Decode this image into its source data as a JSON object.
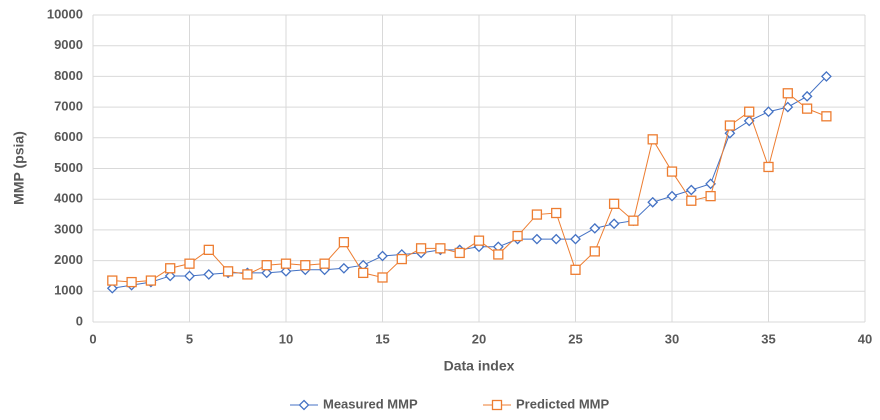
{
  "chart_data": {
    "type": "line",
    "x_label": "Data index",
    "y_label": "MMP (psia)",
    "x": [
      1,
      2,
      3,
      4,
      5,
      6,
      7,
      8,
      9,
      10,
      11,
      12,
      13,
      14,
      15,
      16,
      17,
      18,
      19,
      20,
      21,
      22,
      23,
      24,
      25,
      26,
      27,
      28,
      29,
      30,
      31,
      32,
      33,
      34,
      35,
      36,
      37,
      38
    ],
    "series": [
      {
        "name": "Measured MMP",
        "color": "#4472c4",
        "marker": "diamond",
        "values": [
          1100,
          1200,
          1300,
          1500,
          1500,
          1550,
          1600,
          1600,
          1600,
          1650,
          1700,
          1700,
          1750,
          1850,
          2150,
          2200,
          2250,
          2350,
          2350,
          2450,
          2450,
          2700,
          2700,
          2700,
          2700,
          3050,
          3200,
          3300,
          3900,
          4100,
          4300,
          4500,
          6150,
          6550,
          6850,
          7000,
          7350,
          8000
        ]
      },
      {
        "name": "Predicted MMP",
        "color": "#ed7d31",
        "marker": "square",
        "values": [
          1350,
          1300,
          1350,
          1750,
          1900,
          2350,
          1650,
          1550,
          1850,
          1900,
          1850,
          1900,
          2600,
          1600,
          1450,
          2050,
          2400,
          2400,
          2250,
          2650,
          2200,
          2800,
          3500,
          3550,
          1700,
          2300,
          3850,
          3300,
          5950,
          4900,
          3950,
          4100,
          6400,
          6850,
          5050,
          7450,
          6950,
          6700
        ]
      }
    ],
    "xlim": [
      0,
      40
    ],
    "xticks": [
      0,
      5,
      10,
      15,
      20,
      25,
      30,
      35,
      40
    ],
    "ylim": [
      0,
      10000
    ],
    "yticks": [
      0,
      1000,
      2000,
      3000,
      4000,
      5000,
      6000,
      7000,
      8000,
      9000,
      10000
    ],
    "grid": true,
    "legend": "bottom"
  }
}
